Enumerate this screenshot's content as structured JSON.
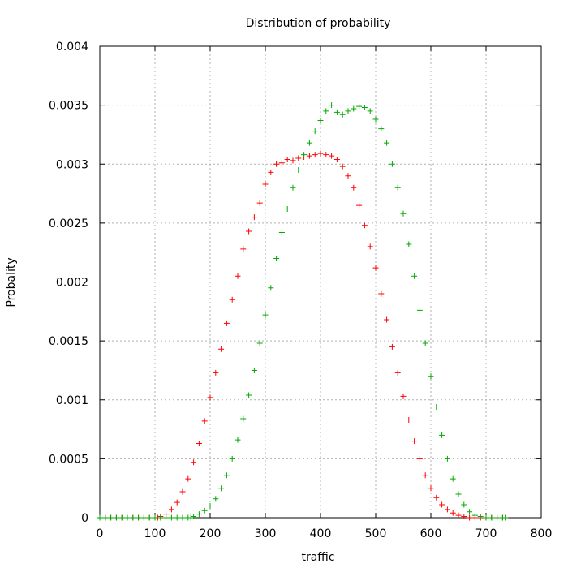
{
  "chart_data": {
    "type": "scatter",
    "title": "Distribution of probability",
    "xlabel": "traffic",
    "ylabel": "Probality",
    "xlim": [
      0,
      800
    ],
    "ylim": [
      0,
      0.004
    ],
    "x_ticks": [
      "0",
      "100",
      "200",
      "300",
      "400",
      "500",
      "600",
      "700",
      "800"
    ],
    "y_ticks": [
      "0",
      "0.0005",
      "0.001",
      "0.0015",
      "0.002",
      "0.0025",
      "0.003",
      "0.0035",
      "0.004"
    ],
    "grid": true,
    "marker": "plus",
    "series": [
      {
        "color": "#ff0000",
        "points": [
          [
            0,
            0
          ],
          [
            10,
            0
          ],
          [
            20,
            0
          ],
          [
            30,
            0
          ],
          [
            40,
            0
          ],
          [
            50,
            0
          ],
          [
            60,
            0
          ],
          [
            70,
            0
          ],
          [
            80,
            0
          ],
          [
            90,
            0
          ],
          [
            100,
            0
          ],
          [
            105,
            0
          ],
          [
            110,
            1e-05
          ],
          [
            120,
            3e-05
          ],
          [
            130,
            7e-05
          ],
          [
            140,
            0.00013
          ],
          [
            150,
            0.00022
          ],
          [
            160,
            0.00033
          ],
          [
            170,
            0.00047
          ],
          [
            180,
            0.00063
          ],
          [
            190,
            0.00082
          ],
          [
            200,
            0.00102
          ],
          [
            210,
            0.00123
          ],
          [
            220,
            0.00143
          ],
          [
            230,
            0.00165
          ],
          [
            240,
            0.00185
          ],
          [
            250,
            0.00205
          ],
          [
            260,
            0.00228
          ],
          [
            270,
            0.00243
          ],
          [
            280,
            0.00255
          ],
          [
            290,
            0.00267
          ],
          [
            300,
            0.00283
          ],
          [
            310,
            0.00293
          ],
          [
            320,
            0.003
          ],
          [
            330,
            0.00301
          ],
          [
            340,
            0.00304
          ],
          [
            350,
            0.00303
          ],
          [
            360,
            0.00305
          ],
          [
            370,
            0.00306
          ],
          [
            380,
            0.00307
          ],
          [
            390,
            0.00308
          ],
          [
            400,
            0.00309
          ],
          [
            410,
            0.00308
          ],
          [
            420,
            0.00307
          ],
          [
            430,
            0.00304
          ],
          [
            440,
            0.00298
          ],
          [
            450,
            0.0029
          ],
          [
            460,
            0.0028
          ],
          [
            470,
            0.00265
          ],
          [
            480,
            0.00248
          ],
          [
            490,
            0.0023
          ],
          [
            500,
            0.00212
          ],
          [
            510,
            0.0019
          ],
          [
            520,
            0.00168
          ],
          [
            530,
            0.00145
          ],
          [
            540,
            0.00123
          ],
          [
            550,
            0.00103
          ],
          [
            560,
            0.00083
          ],
          [
            570,
            0.00065
          ],
          [
            580,
            0.0005
          ],
          [
            590,
            0.00036
          ],
          [
            600,
            0.00025
          ],
          [
            610,
            0.00017
          ],
          [
            620,
            0.00011
          ],
          [
            630,
            7e-05
          ],
          [
            640,
            4e-05
          ],
          [
            650,
            2e-05
          ],
          [
            660,
            1e-05
          ],
          [
            670,
            0
          ],
          [
            680,
            0
          ],
          [
            690,
            0
          ],
          [
            700,
            0
          ],
          [
            710,
            0
          ],
          [
            720,
            0
          ],
          [
            730,
            0
          ],
          [
            735,
            0
          ]
        ]
      },
      {
        "color": "#00aa00",
        "points": [
          [
            0,
            0
          ],
          [
            10,
            0
          ],
          [
            20,
            0
          ],
          [
            30,
            0
          ],
          [
            40,
            0
          ],
          [
            50,
            0
          ],
          [
            60,
            0
          ],
          [
            70,
            0
          ],
          [
            80,
            0
          ],
          [
            90,
            0
          ],
          [
            100,
            0
          ],
          [
            110,
            0
          ],
          [
            120,
            0
          ],
          [
            130,
            0
          ],
          [
            140,
            0
          ],
          [
            150,
            0
          ],
          [
            160,
            0
          ],
          [
            165,
            0
          ],
          [
            170,
            1e-05
          ],
          [
            180,
            3e-05
          ],
          [
            190,
            6e-05
          ],
          [
            200,
            0.0001
          ],
          [
            210,
            0.00016
          ],
          [
            220,
            0.00025
          ],
          [
            230,
            0.00036
          ],
          [
            240,
            0.0005
          ],
          [
            250,
            0.00066
          ],
          [
            260,
            0.00084
          ],
          [
            270,
            0.00104
          ],
          [
            280,
            0.00125
          ],
          [
            290,
            0.00148
          ],
          [
            300,
            0.00172
          ],
          [
            310,
            0.00195
          ],
          [
            320,
            0.0022
          ],
          [
            330,
            0.00242
          ],
          [
            340,
            0.00262
          ],
          [
            350,
            0.0028
          ],
          [
            360,
            0.00295
          ],
          [
            370,
            0.00308
          ],
          [
            380,
            0.00318
          ],
          [
            390,
            0.00328
          ],
          [
            400,
            0.00337
          ],
          [
            410,
            0.00345
          ],
          [
            420,
            0.0035
          ],
          [
            430,
            0.00344
          ],
          [
            440,
            0.00342
          ],
          [
            450,
            0.00345
          ],
          [
            460,
            0.00347
          ],
          [
            470,
            0.00349
          ],
          [
            480,
            0.00348
          ],
          [
            490,
            0.00345
          ],
          [
            500,
            0.00338
          ],
          [
            510,
            0.0033
          ],
          [
            520,
            0.00318
          ],
          [
            530,
            0.003
          ],
          [
            540,
            0.0028
          ],
          [
            550,
            0.00258
          ],
          [
            560,
            0.00232
          ],
          [
            570,
            0.00205
          ],
          [
            580,
            0.00176
          ],
          [
            590,
            0.00148
          ],
          [
            600,
            0.0012
          ],
          [
            610,
            0.00094
          ],
          [
            620,
            0.0007
          ],
          [
            630,
            0.0005
          ],
          [
            640,
            0.00033
          ],
          [
            650,
            0.0002
          ],
          [
            660,
            0.00011
          ],
          [
            670,
            5e-05
          ],
          [
            680,
            2e-05
          ],
          [
            690,
            1e-05
          ],
          [
            700,
            0
          ],
          [
            710,
            0
          ],
          [
            720,
            0
          ],
          [
            730,
            0
          ],
          [
            735,
            0
          ]
        ]
      }
    ]
  }
}
